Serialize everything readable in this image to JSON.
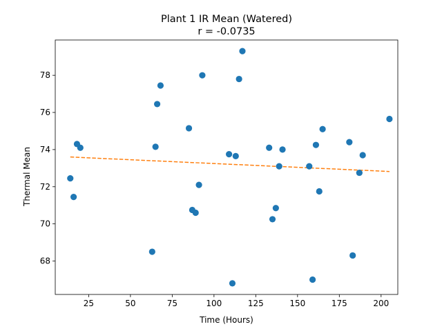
{
  "chart_data": {
    "type": "scatter",
    "title": "Plant 1 IR Mean (Watered)",
    "subtitle": "r = -0.0735",
    "xlabel": "Time (Hours)",
    "ylabel": "Thermal Mean",
    "xlim": [
      5,
      210
    ],
    "ylim": [
      66.2,
      79.9
    ],
    "xticks": [
      25,
      50,
      75,
      100,
      125,
      150,
      175,
      200
    ],
    "yticks": [
      68,
      70,
      72,
      74,
      76,
      78
    ],
    "grid": false,
    "colors": {
      "points": "#1f77b4",
      "trend": "#ff7f0e"
    },
    "series": [
      {
        "x": [
          14,
          16,
          18,
          20,
          63,
          65,
          66,
          68,
          85,
          87,
          89,
          91,
          93,
          109,
          111,
          113,
          115,
          117,
          133,
          135,
          137,
          139,
          141,
          157,
          159,
          161,
          163,
          165,
          181,
          183,
          187,
          189,
          205
        ],
        "y": [
          72.45,
          71.45,
          74.3,
          74.1,
          68.5,
          74.15,
          76.45,
          77.45,
          75.15,
          70.75,
          70.6,
          72.1,
          78.0,
          73.75,
          66.8,
          73.65,
          77.8,
          79.3,
          74.1,
          70.25,
          70.85,
          73.1,
          74.0,
          73.1,
          67.0,
          74.25,
          71.75,
          75.1,
          74.4,
          68.3,
          72.75,
          73.7,
          75.65
        ]
      }
    ],
    "trendline": {
      "x": [
        14,
        205
      ],
      "y": [
        73.6,
        72.82
      ],
      "style": "dashed"
    }
  }
}
